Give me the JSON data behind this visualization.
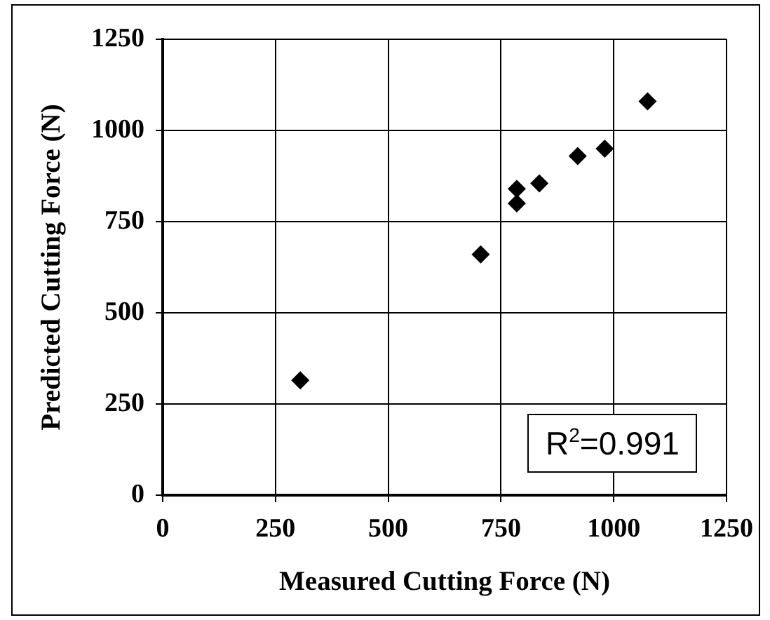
{
  "chart_data": {
    "type": "scatter",
    "xlabel": "Measured Cutting Force (N)",
    "ylabel": "Predicted Cutting Force (N)",
    "x": [
      305,
      705,
      785,
      785,
      835,
      920,
      980,
      1075
    ],
    "values": [
      315,
      660,
      800,
      840,
      855,
      930,
      950,
      1080
    ],
    "color": "#000000",
    "marker": "diamond",
    "grid": true,
    "xlim": [
      0,
      1250
    ],
    "xticks": [
      0,
      250,
      500,
      750,
      1000,
      1250
    ],
    "ylim": [
      0,
      1250
    ],
    "yticks": [
      0,
      250,
      500,
      750,
      1000,
      1250
    ],
    "annotations": [
      "R$^{2}$=0.991"
    ]
  }
}
